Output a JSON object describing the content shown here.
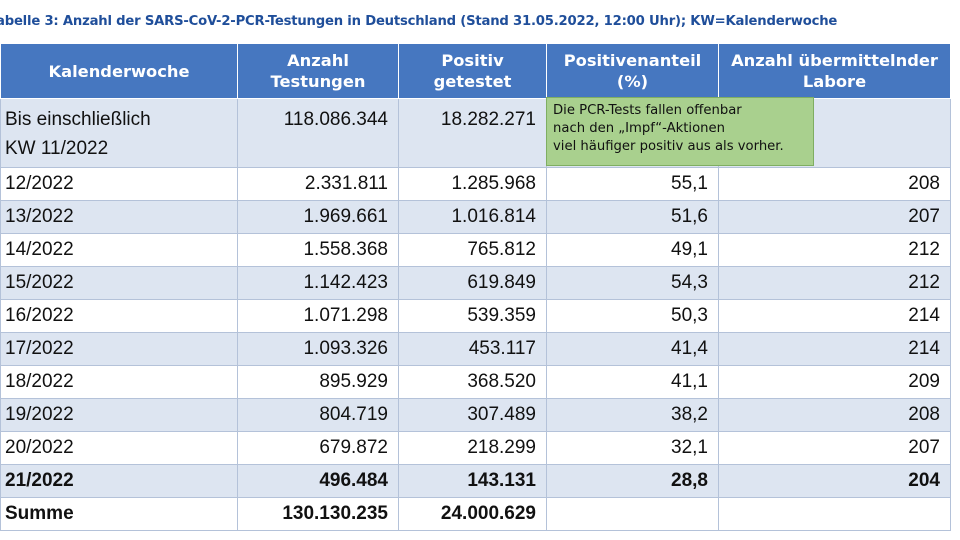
{
  "caption": "abelle 3: Anzahl der SARS-CoV-2-PCR-Testungen in Deutschland (Stand 31.05.2022, 12:00 Uhr); KW=Kalenderwoche",
  "headers": [
    [
      "Kalenderwoche"
    ],
    [
      "Anzahl",
      "Testungen"
    ],
    [
      "Positiv",
      "getestet"
    ],
    [
      "Positivenanteil",
      "(%)"
    ],
    [
      "Anzahl übermittelnder",
      "Labore"
    ]
  ],
  "rows": [
    {
      "week": [
        "Bis einschließlich",
        "KW 11/2022"
      ],
      "tests": "118.086.344",
      "positive": "18.282.271",
      "share": "",
      "labs": ""
    },
    {
      "week": [
        "12/2022"
      ],
      "tests": "2.331.811",
      "positive": "1.285.968",
      "share": "55,1",
      "labs": "208"
    },
    {
      "week": [
        "13/2022"
      ],
      "tests": "1.969.661",
      "positive": "1.016.814",
      "share": "51,6",
      "labs": "207"
    },
    {
      "week": [
        "14/2022"
      ],
      "tests": "1.558.368",
      "positive": "765.812",
      "share": "49,1",
      "labs": "212"
    },
    {
      "week": [
        "15/2022"
      ],
      "tests": "1.142.423",
      "positive": "619.849",
      "share": "54,3",
      "labs": "212"
    },
    {
      "week": [
        "16/2022"
      ],
      "tests": "1.071.298",
      "positive": "539.359",
      "share": "50,3",
      "labs": "214"
    },
    {
      "week": [
        "17/2022"
      ],
      "tests": "1.093.326",
      "positive": "453.117",
      "share": "41,4",
      "labs": "214"
    },
    {
      "week": [
        "18/2022"
      ],
      "tests": "895.929",
      "positive": "368.520",
      "share": "41,1",
      "labs": "209"
    },
    {
      "week": [
        "19/2022"
      ],
      "tests": "804.719",
      "positive": "307.489",
      "share": "38,2",
      "labs": "208"
    },
    {
      "week": [
        "20/2022"
      ],
      "tests": "679.872",
      "positive": "218.299",
      "share": "32,1",
      "labs": "207"
    },
    {
      "week": [
        "21/2022"
      ],
      "tests": "496.484",
      "positive": "143.131",
      "share": "28,8",
      "labs": "204",
      "bold": true
    },
    {
      "week": [
        "Summe"
      ],
      "tests": "130.130.235",
      "positive": "24.000.629",
      "share": "",
      "labs": "",
      "bold": true
    }
  ],
  "callout": {
    "lines": [
      "Die PCR-Tests fallen offenbar",
      "nach den „Impf“-Aktionen",
      "viel häufiger positiv aus als vorher."
    ],
    "color": "#a9d08e"
  },
  "colors": {
    "header_bg": "#4677c0",
    "caption": "#1f4e9a",
    "band": "#dde5f1"
  }
}
